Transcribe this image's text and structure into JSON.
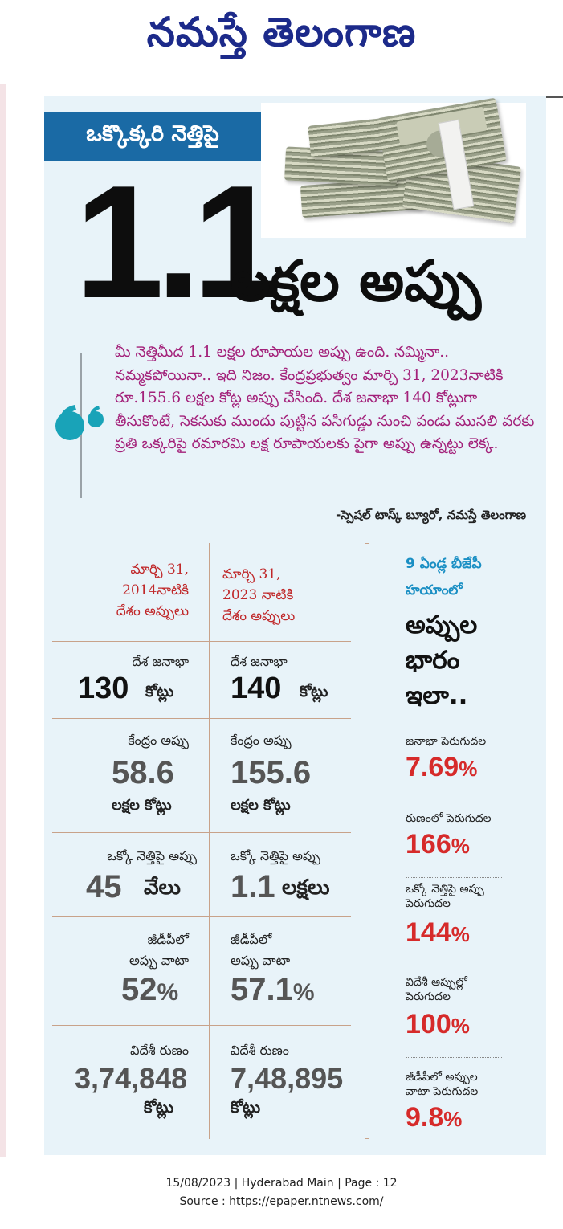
{
  "masthead": {
    "title": "నమస్తే తెలంగాణ"
  },
  "headline": {
    "kicker": "ఒక్కొక్కరి నెత్తిపై",
    "number": "1.1",
    "word": "లక్షల అప్పు"
  },
  "quote": {
    "text": "మీ నెత్తిమీద 1.1 లక్షల రూపాయల అప్పు ఉంది. నమ్మినా.. నమ్మకపోయినా.. ఇది నిజం. కేంద్రప్రభుత్వం మార్చి 31, 2023నాటికి రూ.155.6 లక్షల కోట్ల అప్పు చేసింది. దేశ జనాభా 140 కోట్లుగా తీసుకొంటే, సెకనుకు ముందు పుట్టిన పసిగుడ్డు నుంచి పండు ముసలి వరకు ప్రతి ఒక్కరిపై రమారమి లక్ష రూపాయలకు పైగా అప్పు ఉన్నట్టు లెక్క.",
    "byline": "-స్పెషల్ టాస్క్ బ్యూరో, నమస్తే తెలంగాణ"
  },
  "table": {
    "col_2014": {
      "line1": "మార్చి 31,",
      "line2": "2014నాటికి",
      "line3": "దేశం అప్పులు"
    },
    "col_2023": {
      "line1": "మార్చి 31,",
      "line2": "2023 నాటికి",
      "line3": "దేశం అప్పులు"
    },
    "population": {
      "label": "దేశ జనాభా",
      "v2014": "130",
      "v2023": "140",
      "unit": "కోట్లు"
    },
    "central_debt": {
      "label": "కేంద్రం అప్పు",
      "v2014": "58.6",
      "v2023": "155.6",
      "unit": "లక్షల కోట్లు"
    },
    "per_head": {
      "label": "ఒక్కో నెత్తిపై అప్పు",
      "v2014": "45",
      "unit2014": "వేలు",
      "v2023": "1.1",
      "unit2023": "లక్షలు"
    },
    "gdp_share": {
      "label1": "జీడీపీలో",
      "label2": "అప్పు వాటా",
      "v2014": "52",
      "v2023": "57.1",
      "pct": "%"
    },
    "foreign_debt": {
      "label": "విదేశీ రుణం",
      "v2014": "3,74,848",
      "v2023": "7,48,895",
      "unit": "కోట్లు"
    }
  },
  "sidebar": {
    "head1": "9 ఏండ్ల బీజేపీ",
    "head2": "హయాంలో",
    "big1": "అప్పుల",
    "big2": "భారం",
    "big3": "ఇలా..",
    "items": [
      {
        "label1": "జనాభా పెరుగుదల",
        "label2": "",
        "value": "7.69",
        "pct": "%"
      },
      {
        "label1": "రుణంలో పెరుగుదల",
        "label2": "",
        "value": "166",
        "pct": "%"
      },
      {
        "label1": "ఒక్కో నెత్తిపై అప్పు",
        "label2": "పెరుగుదల",
        "value": "144",
        "pct": "%"
      },
      {
        "label1": "విదేశీ అప్పుల్లో",
        "label2": "పెరుగుదల",
        "value": "100",
        "pct": "%"
      },
      {
        "label1": "జీడీపీలో అప్పుల",
        "label2": "వాటా పెరుగుదల",
        "value": "9.8",
        "pct": "%"
      }
    ]
  },
  "footer": {
    "line1": "15/08/2023 | Hyderabad Main | Page : 12",
    "line2": "Source : https://epaper.ntnews.com/"
  }
}
